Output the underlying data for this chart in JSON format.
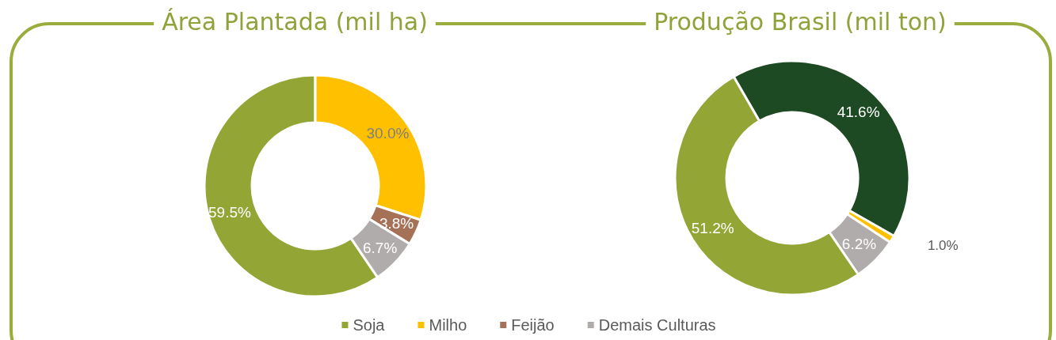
{
  "chart_data": [
    {
      "type": "donut",
      "title": "Área Plantada (mil ha)",
      "categories": [
        "Soja",
        "Milho",
        "Feijão",
        "Demais Culturas"
      ],
      "values": [
        59.5,
        30.0,
        3.8,
        6.7
      ],
      "colors": [
        "#92a535",
        "#ffc000",
        "#a57157",
        "#b0acab"
      ],
      "value_labels": [
        "59.5%",
        "30.0%",
        "3.8%",
        "6.7%"
      ],
      "legend": "bottom"
    },
    {
      "type": "donut",
      "title": "Produção Brasil (mil ton)",
      "categories": [
        null,
        null,
        null,
        null
      ],
      "values": [
        41.6,
        1.0,
        6.2,
        51.2
      ],
      "colors": [
        "#1e4a23",
        "#ffc000",
        "#b0acab",
        "#92a535"
      ],
      "value_labels": [
        "41.6%",
        "1.0%",
        "6.2%",
        "51.2%"
      ]
    }
  ]
}
